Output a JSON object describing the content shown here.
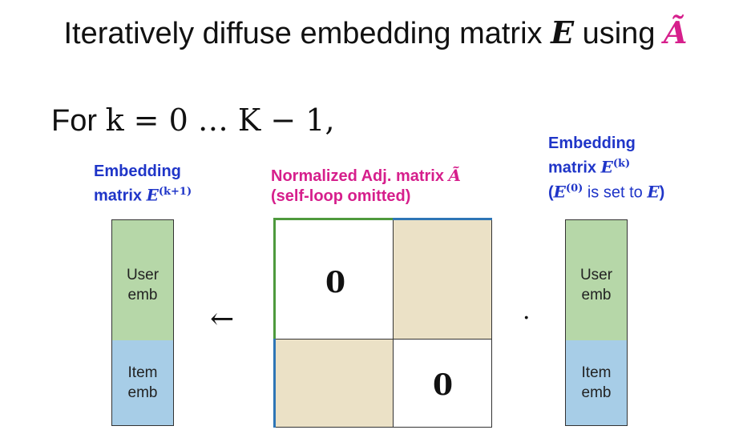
{
  "title": {
    "prefix": "Iteratively diffuse embedding matrix ",
    "var_e": "E",
    "middle": " using ",
    "var_a": "Ã"
  },
  "loop": {
    "prefix": "For ",
    "expression": "k = 0 … K − 1,"
  },
  "left_label": {
    "line1": "Embedding",
    "line2_text": "matrix ",
    "line2_var": "E",
    "line2_sup": "(k+1)"
  },
  "center_label": {
    "line1_text": "Normalized Adj. matrix ",
    "line1_var": "Ã",
    "line2": "(self-loop omitted)"
  },
  "right_label": {
    "line1": "Embedding",
    "line2_text": "matrix ",
    "line2_var": "E",
    "line2_sup": "(k)",
    "line3_open": "(",
    "line3_var": "E",
    "line3_sup": "(0)",
    "line3_text": " is set to ",
    "line3_var2": "E",
    "line3_close": ")"
  },
  "left_vector": {
    "top_line1": "User",
    "top_line2": "emb",
    "bottom_line1": "Item",
    "bottom_line2": "emb"
  },
  "right_vector": {
    "top_line1": "User",
    "top_line2": "emb",
    "bottom_line1": "Item",
    "bottom_line2": "emb"
  },
  "matrix": {
    "top_left": "0",
    "bottom_right": "0"
  },
  "operators": {
    "assign_arrow": "←",
    "dot": "·"
  },
  "colors": {
    "blue_text": "#1f35c8",
    "pink_text": "#d61f8c",
    "user_block": "#b6d7a8",
    "item_block": "#a7cde7",
    "adjacency_block": "#ebe1c6",
    "green_edge": "#4e9a3d",
    "blue_edge": "#2e75b6"
  }
}
